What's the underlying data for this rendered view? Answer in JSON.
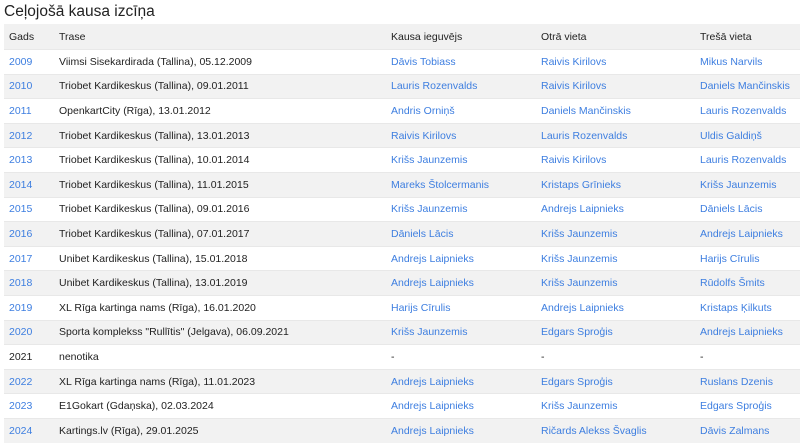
{
  "title": "Ceļojošā kausa izcīņa",
  "colors": {
    "link": "#3d7ee0",
    "stripe": "#f2f2f2"
  },
  "table": {
    "headers": [
      "Gads",
      "Trase",
      "Kausa ieguvējs",
      "Otrā vieta",
      "Trešā vieta"
    ],
    "rows": [
      {
        "year": "2009",
        "link": true,
        "track": "Viimsi Sisekardirada (Tallina), 05.12.2009",
        "winner": "Dāvis Tobiass",
        "second": "Raivis Kirilovs",
        "third": "Mikus Narvils"
      },
      {
        "year": "2010",
        "link": true,
        "track": "Triobet Kardikeskus (Tallina), 09.01.2011",
        "winner": "Lauris Rozenvalds",
        "second": "Raivis Kirilovs",
        "third": "Daniels Mančinskis"
      },
      {
        "year": "2011",
        "link": true,
        "track": "OpenkartCity (Rīga), 13.01.2012",
        "winner": "Andris Orniņš",
        "second": "Daniels Mančinskis",
        "third": "Lauris Rozenvalds"
      },
      {
        "year": "2012",
        "link": true,
        "track": "Triobet Kardikeskus (Tallina), 13.01.2013",
        "winner": "Raivis Kirilovs",
        "second": "Lauris Rozenvalds",
        "third": "Uldis Galdiņš"
      },
      {
        "year": "2013",
        "link": true,
        "track": "Triobet Kardikeskus (Tallina), 10.01.2014",
        "winner": "Krišs Jaunzemis",
        "second": "Raivis Kirilovs",
        "third": "Lauris Rozenvalds"
      },
      {
        "year": "2014",
        "link": true,
        "track": "Triobet Kardikeskus (Tallina), 11.01.2015",
        "winner": "Mareks Štolcermanis",
        "second": "Kristaps Grīnieks",
        "third": "Krišs Jaunzemis"
      },
      {
        "year": "2015",
        "link": true,
        "track": "Triobet Kardikeskus (Tallina), 09.01.2016",
        "winner": "Krišs Jaunzemis",
        "second": "Andrejs Laipnieks",
        "third": "Dāniels Lācis"
      },
      {
        "year": "2016",
        "link": true,
        "track": "Triobet Kardikeskus (Tallina), 07.01.2017",
        "winner": "Dāniels Lācis",
        "second": "Krišs Jaunzemis",
        "third": "Andrejs Laipnieks"
      },
      {
        "year": "2017",
        "link": true,
        "track": "Unibet Kardikeskus (Tallina), 15.01.2018",
        "winner": "Andrejs Laipnieks",
        "second": "Krišs Jaunzemis",
        "third": "Harijs Cīrulis"
      },
      {
        "year": "2018",
        "link": true,
        "track": "Unibet Kardikeskus (Tallina), 13.01.2019",
        "winner": "Andrejs Laipnieks",
        "second": "Krišs Jaunzemis",
        "third": "Rūdolfs Šmits"
      },
      {
        "year": "2019",
        "link": true,
        "track": "XL Rīga kartinga nams (Rīga), 16.01.2020",
        "winner": "Harijs Cīrulis",
        "second": "Andrejs Laipnieks",
        "third": "Kristaps Ķilkuts"
      },
      {
        "year": "2020",
        "link": true,
        "track": "Sporta komplekss \"Rullītis\" (Jelgava), 06.09.2021",
        "winner": "Krišs Jaunzemis",
        "second": "Edgars Sproģis",
        "third": "Andrejs Laipnieks"
      },
      {
        "year": "2021",
        "link": false,
        "track": "nenotika",
        "winner": "-",
        "second": "-",
        "third": "-"
      },
      {
        "year": "2022",
        "link": true,
        "track": "XL Rīga kartinga nams (Rīga), 11.01.2023",
        "winner": "Andrejs Laipnieks",
        "second": "Edgars Sproģis",
        "third": "Ruslans Dzenis"
      },
      {
        "year": "2023",
        "link": true,
        "track": "E1Gokart (Gdaņska), 02.03.2024",
        "winner": "Andrejs Laipnieks",
        "second": "Krišs Jaunzemis",
        "third": "Edgars Sproģis"
      },
      {
        "year": "2024",
        "link": true,
        "track": "Kartings.lv (Rīga), 29.01.2025",
        "winner": "Andrejs Laipnieks",
        "second": "Ričards Alekss Švaglis",
        "third": "Dāvis Zalmans"
      }
    ]
  }
}
